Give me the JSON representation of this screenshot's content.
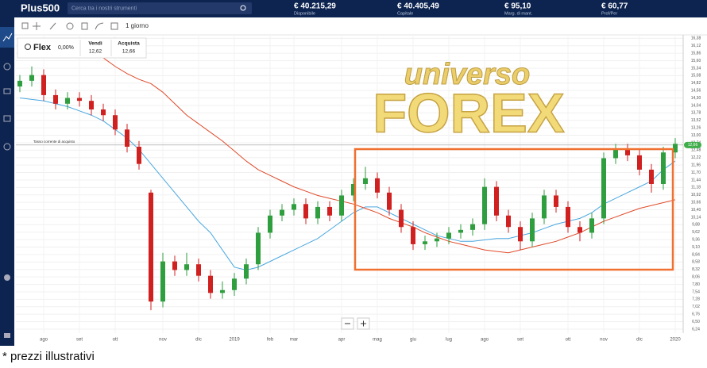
{
  "header": {
    "logo": "Plus500",
    "search_placeholder": "Cerca tra i nostri strumenti",
    "stats": [
      {
        "value": "€ 40.215,29",
        "label": "Disponibile"
      },
      {
        "value": "€ 40.405,49",
        "label": "Capitale"
      },
      {
        "value": "€ 95,10",
        "label": "Marg. di mant."
      },
      {
        "value": "€ 60,77",
        "label": "Prof/Per"
      }
    ]
  },
  "toolbar": {
    "timeframe": "1 giorno"
  },
  "instrument": {
    "name": "Flex",
    "change": "0,00%",
    "sell_label": "Vendi",
    "sell": "12,62",
    "buy_label": "Acquista",
    "buy": "12,66"
  },
  "watermark": {
    "line1": "universo",
    "line2": "FOREX"
  },
  "footnote": "* prezzi illustrativi",
  "chart_data": {
    "type": "candlestick",
    "up_color": "#2e9e3e",
    "down_color": "#d02020",
    "grid": true,
    "x_labels": [
      "ago",
      "set",
      "ott",
      "nov",
      "dic",
      "2019",
      "feb",
      "mar",
      "apr",
      "mag",
      "giu",
      "lug",
      "ago",
      "set",
      "ott",
      "nov",
      "dic",
      "2020"
    ],
    "ylim": [
      6.1,
      16.5
    ],
    "yticks": [
      {
        "value": 6.24,
        "label": "6,24"
      },
      {
        "value": 6.5,
        "label": "6,50"
      },
      {
        "value": 6.76,
        "label": "6,76"
      },
      {
        "value": 7.02,
        "label": "7,02"
      },
      {
        "value": 7.28,
        "label": "7,28"
      },
      {
        "value": 7.54,
        "label": "7,54"
      },
      {
        "value": 7.8,
        "label": "7,80"
      },
      {
        "value": 8.06,
        "label": "8,06"
      },
      {
        "value": 8.32,
        "label": "8,32"
      },
      {
        "value": 8.58,
        "label": "8,58"
      },
      {
        "value": 8.84,
        "label": "8,84"
      },
      {
        "value": 9.1,
        "label": "9,10"
      },
      {
        "value": 9.36,
        "label": "9,36"
      },
      {
        "value": 9.62,
        "label": "9,62"
      },
      {
        "value": 9.88,
        "label": "9,88"
      },
      {
        "value": 10.14,
        "label": "10,14"
      },
      {
        "value": 10.4,
        "label": "10,40"
      },
      {
        "value": 10.66,
        "label": "10,66"
      },
      {
        "value": 10.92,
        "label": "10,92"
      },
      {
        "value": 11.18,
        "label": "11,18"
      },
      {
        "value": 11.44,
        "label": "11,44"
      },
      {
        "value": 11.7,
        "label": "11,70"
      },
      {
        "value": 11.96,
        "label": "11,96"
      },
      {
        "value": 12.22,
        "label": "12,22"
      },
      {
        "value": 12.48,
        "label": "12,48"
      },
      {
        "value": 12.74,
        "label": "12,74"
      },
      {
        "value": 13,
        "label": "13,00"
      },
      {
        "value": 13.26,
        "label": "13,26"
      },
      {
        "value": 13.52,
        "label": "13,52"
      },
      {
        "value": 13.78,
        "label": "13,78"
      },
      {
        "value": 14.04,
        "label": "14,04"
      },
      {
        "value": 14.3,
        "label": "14,30"
      },
      {
        "value": 14.56,
        "label": "14,56"
      },
      {
        "value": 14.82,
        "label": "14,82"
      },
      {
        "value": 15.08,
        "label": "15,08"
      },
      {
        "value": 15.34,
        "label": "15,34"
      },
      {
        "value": 15.6,
        "label": "15,60"
      },
      {
        "value": 15.86,
        "label": "15,86"
      },
      {
        "value": 16.12,
        "label": "16,12"
      },
      {
        "value": 16.38,
        "label": "16,38"
      }
    ],
    "current_rate": {
      "label": "Tasso corrente di acquisto",
      "value": 12.66,
      "value_label": "12,66"
    },
    "ohlc": [
      [
        14.7,
        15.1,
        14.5,
        14.9
      ],
      [
        14.9,
        15.4,
        14.7,
        15.1
      ],
      [
        15.1,
        15.3,
        14.2,
        14.4
      ],
      [
        14.4,
        14.6,
        13.9,
        14.1
      ],
      [
        14.1,
        14.5,
        13.9,
        14.3
      ],
      [
        14.3,
        14.5,
        14.0,
        14.2
      ],
      [
        14.2,
        14.4,
        13.7,
        13.9
      ],
      [
        13.9,
        14.1,
        13.5,
        13.7
      ],
      [
        13.7,
        13.9,
        13.0,
        13.2
      ],
      [
        13.2,
        13.4,
        12.4,
        12.6
      ],
      [
        12.6,
        12.8,
        11.8,
        12.0
      ],
      [
        11.0,
        11.1,
        6.9,
        7.2
      ],
      [
        7.2,
        8.9,
        7.0,
        8.6
      ],
      [
        8.6,
        8.8,
        8.1,
        8.3
      ],
      [
        8.3,
        8.9,
        8.1,
        8.5
      ],
      [
        8.5,
        8.7,
        7.9,
        8.1
      ],
      [
        8.1,
        8.3,
        7.3,
        7.5
      ],
      [
        7.5,
        7.9,
        7.3,
        7.6
      ],
      [
        7.6,
        8.2,
        7.4,
        8.0
      ],
      [
        8.0,
        8.7,
        7.8,
        8.5
      ],
      [
        8.5,
        9.8,
        8.3,
        9.6
      ],
      [
        9.6,
        10.4,
        9.4,
        10.2
      ],
      [
        10.2,
        10.6,
        10.0,
        10.4
      ],
      [
        10.4,
        10.8,
        10.2,
        10.6
      ],
      [
        10.6,
        10.8,
        9.9,
        10.1
      ],
      [
        10.1,
        10.7,
        9.9,
        10.5
      ],
      [
        10.5,
        10.7,
        10.0,
        10.2
      ],
      [
        10.2,
        11.1,
        10.0,
        10.9
      ],
      [
        10.9,
        11.5,
        10.7,
        11.3
      ],
      [
        11.3,
        11.9,
        11.1,
        11.5
      ],
      [
        11.5,
        11.7,
        10.8,
        11.0
      ],
      [
        11.0,
        11.2,
        10.2,
        10.4
      ],
      [
        10.4,
        10.6,
        9.6,
        9.8
      ],
      [
        9.8,
        10.0,
        9.0,
        9.2
      ],
      [
        9.2,
        9.5,
        9.0,
        9.3
      ],
      [
        9.3,
        9.6,
        9.1,
        9.4
      ],
      [
        9.4,
        9.8,
        9.2,
        9.6
      ],
      [
        9.6,
        9.9,
        9.4,
        9.7
      ],
      [
        9.7,
        10.1,
        9.5,
        9.9
      ],
      [
        9.9,
        11.5,
        9.7,
        11.2
      ],
      [
        11.2,
        11.4,
        10.0,
        10.2
      ],
      [
        10.2,
        10.4,
        9.6,
        9.8
      ],
      [
        9.8,
        10.0,
        9.0,
        9.3
      ],
      [
        9.3,
        10.3,
        9.1,
        10.1
      ],
      [
        10.1,
        11.1,
        9.9,
        10.9
      ],
      [
        10.9,
        11.1,
        10.3,
        10.5
      ],
      [
        10.5,
        10.7,
        9.6,
        9.8
      ],
      [
        9.8,
        10.0,
        9.3,
        9.6
      ],
      [
        9.6,
        10.3,
        9.4,
        10.1
      ],
      [
        10.1,
        12.4,
        9.9,
        12.2
      ],
      [
        12.2,
        12.7,
        12.0,
        12.5
      ],
      [
        12.5,
        12.7,
        12.1,
        12.3
      ],
      [
        12.3,
        12.5,
        11.6,
        11.8
      ],
      [
        11.8,
        12.0,
        11.0,
        11.3
      ],
      [
        11.3,
        12.6,
        11.1,
        12.4
      ],
      [
        12.4,
        12.9,
        12.2,
        12.7
      ]
    ],
    "moving_averages": [
      {
        "color": "#4aa8e0",
        "values": [
          14.3,
          14.25,
          14.2,
          14.1,
          14.0,
          13.85,
          13.7,
          13.5,
          13.2,
          12.9,
          12.5,
          12.0,
          11.5,
          11.0,
          10.5,
          10.0,
          9.6,
          9.0,
          8.4,
          8.3,
          8.4,
          8.6,
          8.8,
          9.0,
          9.2,
          9.4,
          9.7,
          10.0,
          10.3,
          10.5,
          10.5,
          10.3,
          10.1,
          9.9,
          9.7,
          9.5,
          9.4,
          9.3,
          9.3,
          9.35,
          9.4,
          9.4,
          9.5,
          9.6,
          9.75,
          9.9,
          10.0,
          10.1,
          10.3,
          10.6,
          10.8,
          11.0,
          11.2,
          11.4,
          11.8,
          12.1
        ]
      },
      {
        "color": "#e04a2a",
        "values": [
          null,
          null,
          null,
          null,
          null,
          16.3,
          16.0,
          15.7,
          15.4,
          15.15,
          14.95,
          14.8,
          14.5,
          14.1,
          13.7,
          13.4,
          13.1,
          12.8,
          12.45,
          12.1,
          11.8,
          11.6,
          11.4,
          11.2,
          11.05,
          10.9,
          10.8,
          10.7,
          10.6,
          10.45,
          10.3,
          10.1,
          9.95,
          9.8,
          9.6,
          9.45,
          9.3,
          9.2,
          9.1,
          9.0,
          8.95,
          8.9,
          9.0,
          9.1,
          9.2,
          9.3,
          9.45,
          9.6,
          9.8,
          10.0,
          10.15,
          10.3,
          10.45,
          10.55,
          10.65,
          10.75
        ]
      }
    ]
  }
}
